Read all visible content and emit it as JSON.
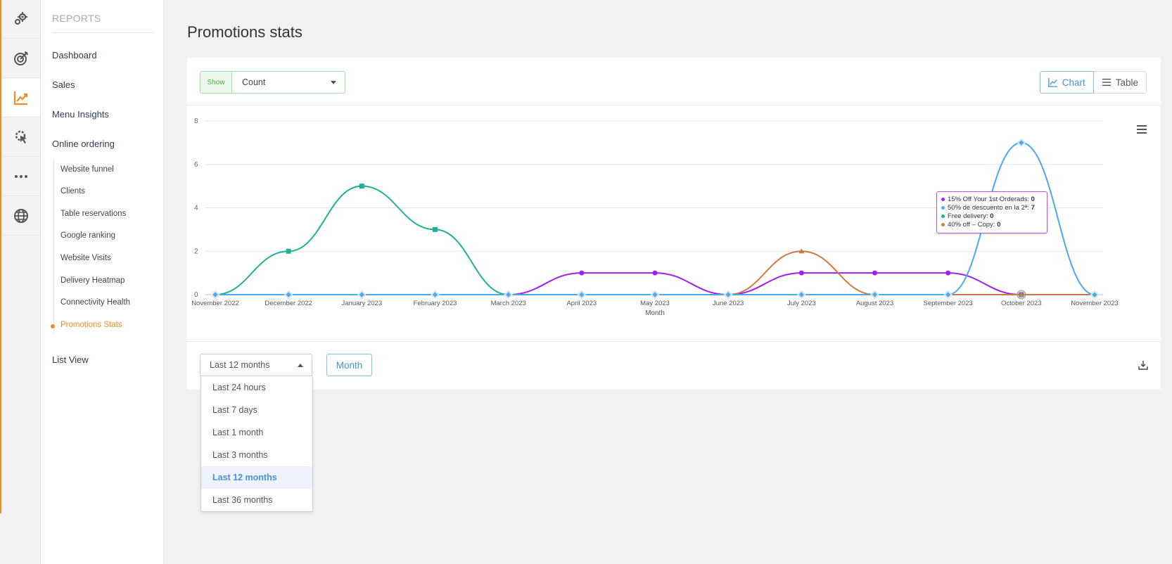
{
  "rail": {
    "items": [
      {
        "icon": "gears-icon"
      },
      {
        "icon": "target-icon"
      },
      {
        "icon": "chart-line-icon",
        "active": true
      },
      {
        "icon": "cursor-gear-icon"
      },
      {
        "icon": "more-dots-icon"
      },
      {
        "icon": "globe-icon"
      }
    ]
  },
  "subnav": {
    "header": "REPORTS",
    "items": [
      "Dashboard",
      "Sales",
      "Menu Insights",
      "Online ordering"
    ],
    "sub_items": [
      "Website funnel",
      "Clients",
      "Table reservations",
      "Google ranking",
      "Website Visits",
      "Delivery Heatmap",
      "Connectivity Health",
      "Promotions Stats"
    ],
    "active_sub": "Promotions Stats",
    "list_view": "List View"
  },
  "page": {
    "title": "Promotions stats"
  },
  "controls": {
    "show_label": "Show",
    "show_value": "Count",
    "chart_label": "Chart",
    "table_label": "Table",
    "range_value": "Last 12 months",
    "month_label": "Month",
    "range_options": [
      "Last 24 hours",
      "Last 7 days",
      "Last 1 month",
      "Last 3 months",
      "Last 12 months",
      "Last 36 months"
    ],
    "range_selected_index": 4
  },
  "colors": {
    "accent": "#f08a24",
    "link_blue": "#4a90d9",
    "series_purple": "#a020f0",
    "series_blue": "#4aa8ee",
    "series_teal": "#20b097",
    "series_orange": "#cd7a3e"
  },
  "tooltip": {
    "lines": [
      {
        "label": "15% Off Your 1st Orderads:",
        "value": "0",
        "color": "#a020f0"
      },
      {
        "label": "50% de descuento en la 2ª:",
        "value": "7",
        "color": "#4aa8ee"
      },
      {
        "label": "Free delivery:",
        "value": "0",
        "color": "#20b097"
      },
      {
        "label": "40% off – Copy:",
        "value": "0",
        "color": "#cd7a3e"
      }
    ]
  },
  "chart_data": {
    "type": "line",
    "xlabel": "Month",
    "ylabel": "",
    "ylim": [
      0,
      8
    ],
    "yticks": [
      0,
      2,
      4,
      6,
      8
    ],
    "grid": true,
    "categories": [
      "November 2022",
      "December 2022",
      "January 2023",
      "February 2023",
      "March 2023",
      "April 2023",
      "May 2023",
      "June 2023",
      "July 2023",
      "August 2023",
      "September 2023",
      "October 2023",
      "November 2023"
    ],
    "series": [
      {
        "name": "Free delivery",
        "color": "#20b097",
        "marker": "square",
        "values": [
          0,
          2,
          5,
          3,
          0,
          0,
          0,
          0,
          0,
          0,
          0,
          0,
          0
        ]
      },
      {
        "name": "15% Off Your 1st Orderads",
        "color": "#a020f0",
        "marker": "circle",
        "values": [
          0,
          0,
          0,
          0,
          0,
          1,
          1,
          0,
          1,
          1,
          1,
          0,
          0
        ]
      },
      {
        "name": "40% off – Copy",
        "color": "#cd7a3e",
        "marker": "triangle",
        "values": [
          0,
          0,
          0,
          0,
          0,
          0,
          0,
          0,
          2,
          0,
          0,
          0,
          0
        ]
      },
      {
        "name": "50% de descuento en la 2ª",
        "color": "#4aa8ee",
        "marker": "diamond",
        "values": [
          0,
          0,
          0,
          0,
          0,
          0,
          0,
          0,
          0,
          0,
          0,
          7,
          0
        ]
      }
    ]
  }
}
